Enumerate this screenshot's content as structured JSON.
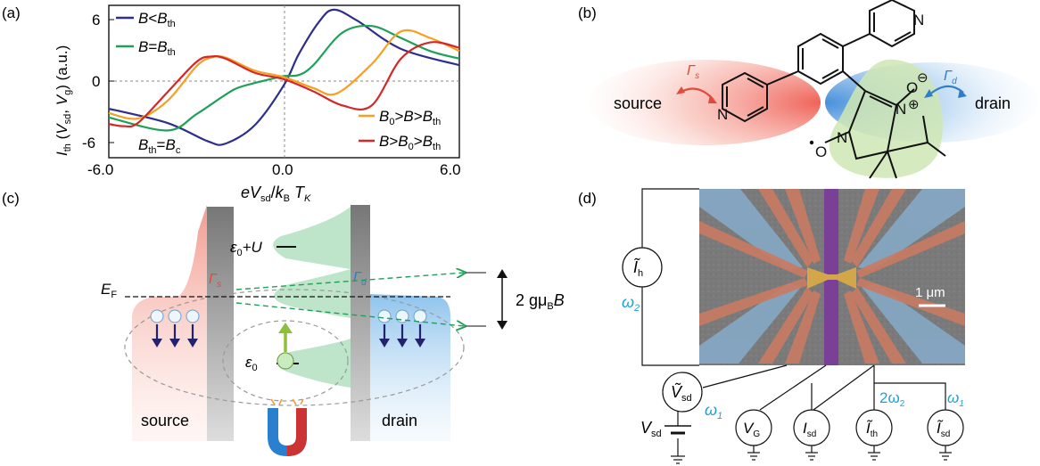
{
  "panels": {
    "a": "(a)",
    "b": "(b)",
    "c": "(c)",
    "d": "(d)"
  },
  "colors": {
    "blue": "#2e2e8c",
    "green": "#1fa05a",
    "orange": "#f5a020",
    "red": "#d62728",
    "cyan": "#1aa3d9",
    "source_red": "#e8473f",
    "drain_blue": "#4a90d9",
    "mol_green": "#cde6b0",
    "purple": "#7a3d9a",
    "electrode": "#c9705a",
    "gold": "#d4a64a"
  },
  "chart_data": {
    "type": "line",
    "ylabel": "I_th(V_sd, V_g) (a.u.)",
    "xlabel": "eV_sd/k_B T_K",
    "xlim": [
      -6.0,
      6.0
    ],
    "ylim": [
      -7,
      7
    ],
    "xticks": [
      "-6.0",
      "0.0",
      "6.0"
    ],
    "yticks": [
      "6",
      "0",
      "-6"
    ],
    "legend_left": [
      "B<B_th",
      "B=B_th"
    ],
    "legend_right": [
      "B_0>B>B_th",
      "B>B_0>B_th"
    ],
    "annotation": "B_th=B_c",
    "series": [
      {
        "name": "B<B_th",
        "color": "blue",
        "x": [
          -6,
          -4,
          -2.6,
          -2,
          -1,
          0,
          0.5,
          1.2,
          1.7,
          2.5,
          4,
          6
        ],
        "y": [
          -2.5,
          -3.8,
          -5.5,
          -5.7,
          -4,
          -0.3,
          2.5,
          5.5,
          6.6,
          5.6,
          3,
          1.5
        ]
      },
      {
        "name": "B=B_th",
        "color": "green",
        "x": [
          -6,
          -4,
          -3,
          -2,
          -1.5,
          -0.5,
          0,
          0.5,
          1,
          2,
          3,
          4,
          5,
          6
        ],
        "y": [
          -3.3,
          -4.5,
          -3,
          -1.2,
          -0.5,
          0.2,
          0.5,
          0.6,
          1.5,
          4.5,
          5.1,
          4,
          2.8,
          2.1
        ]
      },
      {
        "name": "B_0>B>B_th",
        "color": "orange",
        "x": [
          -6,
          -5,
          -4,
          -3,
          -2.5,
          -2,
          -1,
          0,
          1,
          1.8,
          3,
          4,
          5,
          6
        ],
        "y": [
          -2.9,
          -3.4,
          -1.8,
          1.4,
          2.2,
          2.2,
          1,
          0.4,
          -0.6,
          -1.1,
          1.6,
          4.6,
          4,
          2.8
        ]
      },
      {
        "name": "B>B_0>B_th",
        "color": "red",
        "x": [
          -6,
          -5.5,
          -5,
          -4,
          -3,
          -2.5,
          -2,
          -1,
          0,
          1,
          2,
          3,
          4,
          5,
          6
        ],
        "y": [
          -3.9,
          -4.1,
          -3.8,
          -1,
          1.8,
          2.3,
          2.1,
          0.8,
          0.2,
          -0.9,
          -2.2,
          -2.2,
          2.1,
          3.6,
          3.1
        ]
      }
    ]
  },
  "b": {
    "source": "source",
    "drain": "drain",
    "gamma_s": "Γ",
    "gamma_s_sub": "s",
    "gamma_d": "Γ",
    "gamma_d_sub": "d",
    "N1": "N",
    "N2": "N",
    "N3": "N",
    "N4": "N",
    "O1": "O",
    "O2": "O",
    "minus": "⊖",
    "plus": "⊕"
  },
  "c": {
    "EF": "E",
    "EF_sub": "F",
    "eps0U": "ε",
    "eps0U_sub": "0",
    "eps0U_tail": "+U",
    "eps0": "ε",
    "eps0_sub": "0",
    "gamma_s": "Γ",
    "gamma_s_sub": "s",
    "gamma_d": "Γ",
    "gamma_d_sub": "d",
    "zeeman": "2 gμ",
    "zeeman_sub": "B",
    "zeeman_tail": "B",
    "source": "source",
    "drain": "drain"
  },
  "d": {
    "Ih": "Ĩ",
    "Ih_sub": "h",
    "omega2": "ω",
    "omega2_sub": "2",
    "Vsd_ac": "Ṽ",
    "Vsd_ac_sub": "sd",
    "omega1": "ω",
    "omega1_sub": "1",
    "Vsd_dc": "V",
    "Vsd_dc_sub": "sd",
    "VG": "V",
    "VG_sub": "G",
    "Isd": "I",
    "Isd_sub": "sd",
    "Ith": "Ĩ",
    "Ith_sub": "th",
    "Isd_ac": "Ĩ",
    "Isd_ac_sub": "sd",
    "two_omega2": "2ω",
    "two_omega2_sub": "2",
    "omega1b": "ω",
    "omega1b_sub": "1",
    "scale": "1 μm"
  }
}
